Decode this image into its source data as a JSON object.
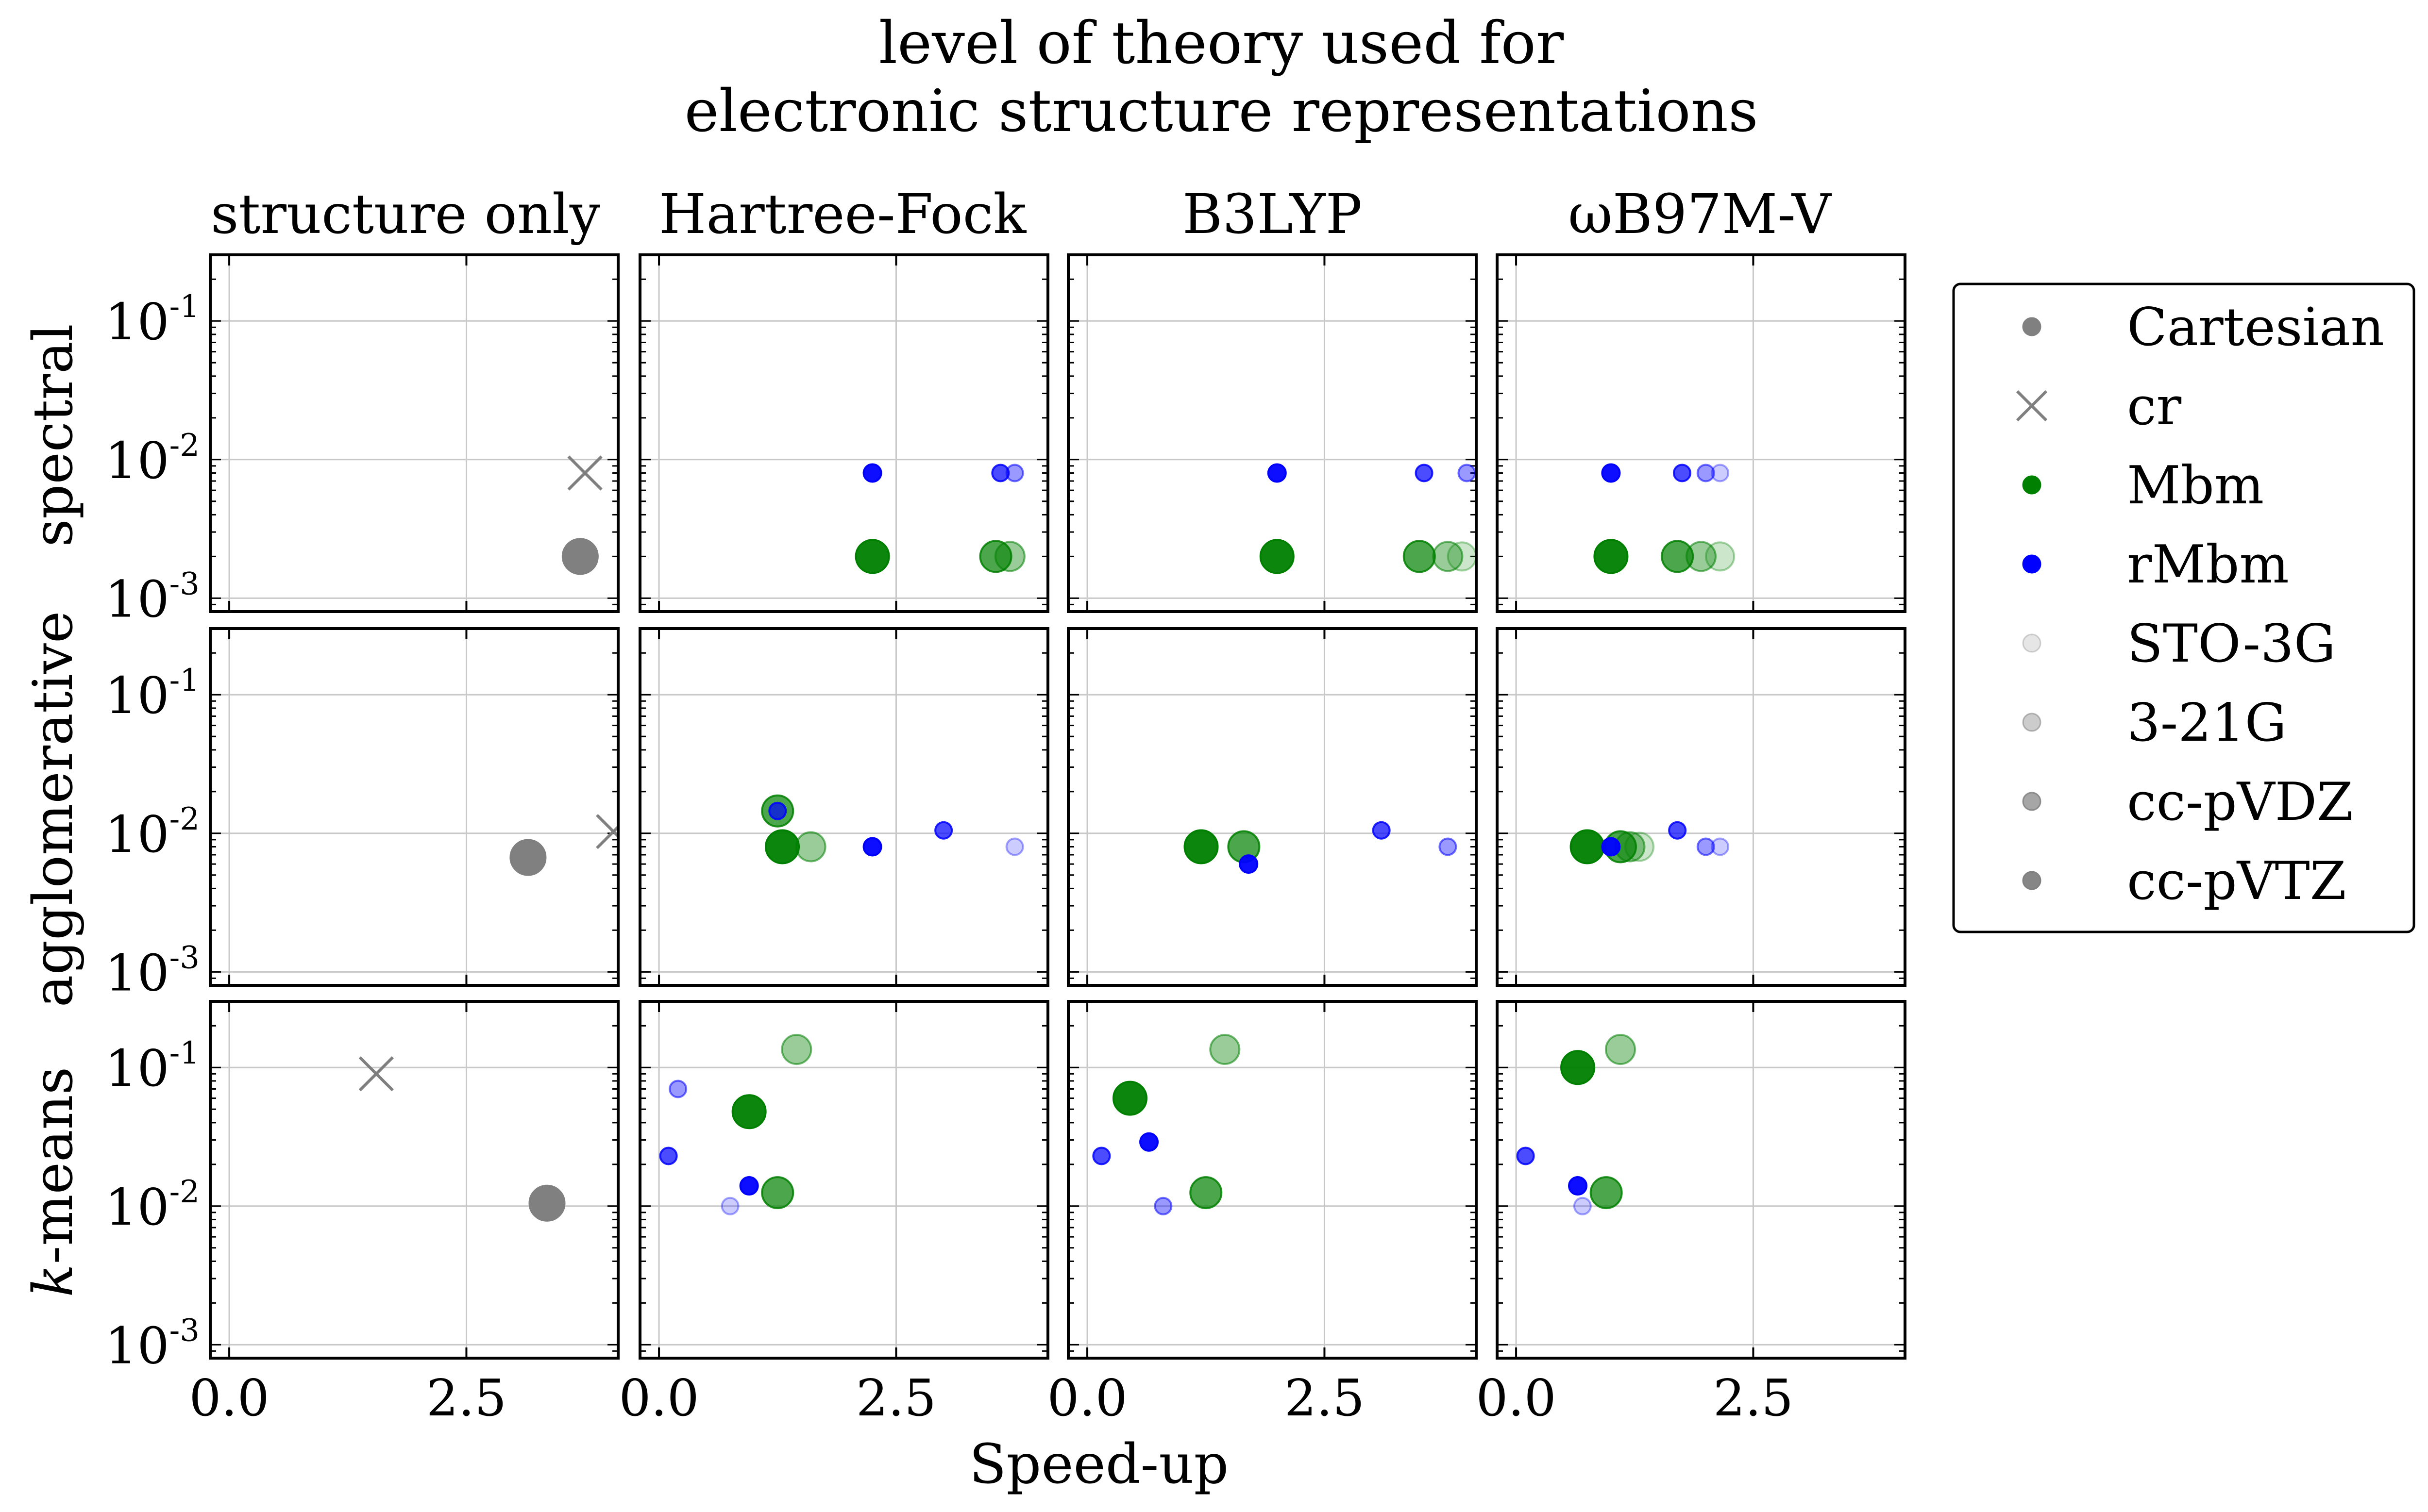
{
  "figure": {
    "title_lines": [
      "level of theory used for",
      "electronic structure representations"
    ],
    "xlabel": "Speed-up",
    "columns": [
      "structure only",
      "Hartree-Fock",
      "B3LYP",
      "ωB97M-V"
    ],
    "rows": [
      {
        "label_prefix": "",
        "label_main": "spectral"
      },
      {
        "label_prefix": "",
        "label_main": "agglomerative"
      },
      {
        "label_prefix": "k",
        "label_main": "-means"
      }
    ]
  },
  "chart_data": {
    "type": "scatter",
    "x_range": [
      -0.2,
      4.1
    ],
    "y_scale": "log",
    "y_range": [
      0.0008,
      0.3
    ],
    "x_ticks": [
      0.0,
      2.5
    ],
    "x_tick_labels": [
      "0.0",
      "2.5"
    ],
    "y_ticks": [
      0.001,
      0.01,
      0.1
    ],
    "y_tick_labels": [
      "10",
      "10",
      "10"
    ],
    "y_tick_exponents": [
      "-3",
      "-2",
      "-1"
    ],
    "grid": true,
    "legend_position": "right",
    "legend": [
      {
        "label": "Cartesian",
        "marker": "circle",
        "color": "#808080",
        "alpha": 1.0
      },
      {
        "label": "cr",
        "marker": "x",
        "color": "#808080",
        "alpha": 1.0
      },
      {
        "label": "Mbm",
        "marker": "circle",
        "color": "#008000",
        "alpha": 1.0
      },
      {
        "label": "rMbm",
        "marker": "circle",
        "color": "#0000ff",
        "alpha": 1.0
      },
      {
        "label": "STO-3G",
        "marker": "circle",
        "color": "#808080",
        "alpha": 0.2
      },
      {
        "label": "3-21G",
        "marker": "circle",
        "color": "#808080",
        "alpha": 0.4
      },
      {
        "label": "cc-pVDZ",
        "marker": "circle",
        "color": "#808080",
        "alpha": 0.7
      },
      {
        "label": "cc-pVTZ",
        "marker": "circle",
        "color": "#808080",
        "alpha": 0.95
      }
    ],
    "panels": [
      {
        "row": 0,
        "col": 0,
        "points": [
          {
            "series": "cr",
            "basis": "",
            "x": 3.75,
            "y": 0.008
          },
          {
            "series": "Cartesian",
            "basis": "",
            "x": 3.7,
            "y": 0.002
          }
        ]
      },
      {
        "row": 0,
        "col": 1,
        "points": [
          {
            "series": "rMbm",
            "basis": "cc-pVTZ",
            "x": 2.25,
            "y": 0.008
          },
          {
            "series": "rMbm",
            "basis": "cc-pVDZ",
            "x": 3.6,
            "y": 0.008
          },
          {
            "series": "rMbm",
            "basis": "3-21G",
            "x": 3.75,
            "y": 0.008
          },
          {
            "series": "Mbm",
            "basis": "cc-pVTZ",
            "x": 2.25,
            "y": 0.002
          },
          {
            "series": "Mbm",
            "basis": "cc-pVDZ",
            "x": 3.55,
            "y": 0.002
          },
          {
            "series": "Mbm",
            "basis": "3-21G",
            "x": 3.7,
            "y": 0.002
          }
        ]
      },
      {
        "row": 0,
        "col": 2,
        "points": [
          {
            "series": "rMbm",
            "basis": "cc-pVTZ",
            "x": 2.0,
            "y": 0.008
          },
          {
            "series": "rMbm",
            "basis": "cc-pVDZ",
            "x": 3.55,
            "y": 0.008
          },
          {
            "series": "rMbm",
            "basis": "3-21G",
            "x": 4.0,
            "y": 0.008
          },
          {
            "series": "Mbm",
            "basis": "cc-pVTZ",
            "x": 2.0,
            "y": 0.002
          },
          {
            "series": "Mbm",
            "basis": "cc-pVDZ",
            "x": 3.5,
            "y": 0.002
          },
          {
            "series": "Mbm",
            "basis": "3-21G",
            "x": 3.8,
            "y": 0.002
          },
          {
            "series": "Mbm",
            "basis": "STO-3G",
            "x": 3.95,
            "y": 0.002
          }
        ]
      },
      {
        "row": 0,
        "col": 3,
        "points": [
          {
            "series": "rMbm",
            "basis": "cc-pVTZ",
            "x": 1.0,
            "y": 0.008
          },
          {
            "series": "rMbm",
            "basis": "cc-pVDZ",
            "x": 1.75,
            "y": 0.008
          },
          {
            "series": "rMbm",
            "basis": "3-21G",
            "x": 2.0,
            "y": 0.008
          },
          {
            "series": "rMbm",
            "basis": "STO-3G",
            "x": 2.15,
            "y": 0.008
          },
          {
            "series": "Mbm",
            "basis": "cc-pVTZ",
            "x": 1.0,
            "y": 0.002
          },
          {
            "series": "Mbm",
            "basis": "cc-pVDZ",
            "x": 1.7,
            "y": 0.002
          },
          {
            "series": "Mbm",
            "basis": "3-21G",
            "x": 1.95,
            "y": 0.002
          },
          {
            "series": "Mbm",
            "basis": "STO-3G",
            "x": 2.15,
            "y": 0.002
          }
        ]
      },
      {
        "row": 1,
        "col": 0,
        "points": [
          {
            "series": "cr",
            "basis": "",
            "x": 4.05,
            "y": 0.0103
          },
          {
            "series": "Cartesian",
            "basis": "",
            "x": 3.15,
            "y": 0.0067
          }
        ]
      },
      {
        "row": 1,
        "col": 1,
        "points": [
          {
            "series": "Mbm",
            "basis": "cc-pVDZ",
            "x": 1.25,
            "y": 0.0145
          },
          {
            "series": "rMbm",
            "basis": "cc-pVDZ",
            "x": 1.25,
            "y": 0.0145
          },
          {
            "series": "Mbm",
            "basis": "cc-pVTZ",
            "x": 1.3,
            "y": 0.008
          },
          {
            "series": "Mbm",
            "basis": "3-21G",
            "x": 1.6,
            "y": 0.008
          },
          {
            "series": "rMbm",
            "basis": "cc-pVTZ",
            "x": 2.25,
            "y": 0.008
          },
          {
            "series": "rMbm",
            "basis": "cc-pVDZ",
            "x": 3.0,
            "y": 0.0105
          },
          {
            "series": "rMbm",
            "basis": "STO-3G",
            "x": 3.75,
            "y": 0.008
          }
        ]
      },
      {
        "row": 1,
        "col": 2,
        "points": [
          {
            "series": "Mbm",
            "basis": "cc-pVTZ",
            "x": 1.2,
            "y": 0.008
          },
          {
            "series": "Mbm",
            "basis": "cc-pVDZ",
            "x": 1.65,
            "y": 0.008
          },
          {
            "series": "rMbm",
            "basis": "cc-pVTZ",
            "x": 1.7,
            "y": 0.006
          },
          {
            "series": "rMbm",
            "basis": "cc-pVDZ",
            "x": 3.1,
            "y": 0.0105
          },
          {
            "series": "rMbm",
            "basis": "3-21G",
            "x": 3.8,
            "y": 0.008
          }
        ]
      },
      {
        "row": 1,
        "col": 3,
        "points": [
          {
            "series": "Mbm",
            "basis": "cc-pVTZ",
            "x": 0.75,
            "y": 0.008
          },
          {
            "series": "Mbm",
            "basis": "cc-pVDZ",
            "x": 1.1,
            "y": 0.008
          },
          {
            "series": "Mbm",
            "basis": "3-21G",
            "x": 1.2,
            "y": 0.008
          },
          {
            "series": "Mbm",
            "basis": "STO-3G",
            "x": 1.3,
            "y": 0.008
          },
          {
            "series": "rMbm",
            "basis": "cc-pVTZ",
            "x": 1.0,
            "y": 0.008
          },
          {
            "series": "rMbm",
            "basis": "cc-pVDZ",
            "x": 1.7,
            "y": 0.0105
          },
          {
            "series": "rMbm",
            "basis": "3-21G",
            "x": 2.0,
            "y": 0.008
          },
          {
            "series": "rMbm",
            "basis": "STO-3G",
            "x": 2.15,
            "y": 0.008
          }
        ]
      },
      {
        "row": 2,
        "col": 0,
        "points": [
          {
            "series": "cr",
            "basis": "",
            "x": 1.55,
            "y": 0.09
          },
          {
            "series": "Cartesian",
            "basis": "",
            "x": 3.35,
            "y": 0.0105
          }
        ]
      },
      {
        "row": 2,
        "col": 1,
        "points": [
          {
            "series": "Mbm",
            "basis": "3-21G",
            "x": 1.45,
            "y": 0.135
          },
          {
            "series": "Mbm",
            "basis": "cc-pVTZ",
            "x": 0.95,
            "y": 0.048
          },
          {
            "series": "Mbm",
            "basis": "cc-pVDZ",
            "x": 1.25,
            "y": 0.0125
          },
          {
            "series": "rMbm",
            "basis": "3-21G",
            "x": 0.2,
            "y": 0.07
          },
          {
            "series": "rMbm",
            "basis": "cc-pVDZ",
            "x": 0.1,
            "y": 0.023
          },
          {
            "series": "rMbm",
            "basis": "cc-pVTZ",
            "x": 0.95,
            "y": 0.014
          },
          {
            "series": "rMbm",
            "basis": "STO-3G",
            "x": 0.75,
            "y": 0.01
          }
        ]
      },
      {
        "row": 2,
        "col": 2,
        "points": [
          {
            "series": "Mbm",
            "basis": "3-21G",
            "x": 1.45,
            "y": 0.135
          },
          {
            "series": "Mbm",
            "basis": "cc-pVTZ",
            "x": 0.45,
            "y": 0.06
          },
          {
            "series": "Mbm",
            "basis": "cc-pVDZ",
            "x": 1.25,
            "y": 0.0125
          },
          {
            "series": "rMbm",
            "basis": "cc-pVDZ",
            "x": 0.15,
            "y": 0.023
          },
          {
            "series": "rMbm",
            "basis": "cc-pVTZ",
            "x": 0.65,
            "y": 0.029
          },
          {
            "series": "rMbm",
            "basis": "3-21G",
            "x": 0.8,
            "y": 0.01
          }
        ]
      },
      {
        "row": 2,
        "col": 3,
        "points": [
          {
            "series": "Mbm",
            "basis": "cc-pVTZ",
            "x": 0.65,
            "y": 0.1
          },
          {
            "series": "Mbm",
            "basis": "3-21G",
            "x": 1.1,
            "y": 0.135
          },
          {
            "series": "Mbm",
            "basis": "cc-pVDZ",
            "x": 0.95,
            "y": 0.0125
          },
          {
            "series": "rMbm",
            "basis": "cc-pVDZ",
            "x": 0.1,
            "y": 0.023
          },
          {
            "series": "rMbm",
            "basis": "cc-pVTZ",
            "x": 0.65,
            "y": 0.014
          },
          {
            "series": "rMbm",
            "basis": "STO-3G",
            "x": 0.7,
            "y": 0.01
          }
        ]
      }
    ]
  }
}
